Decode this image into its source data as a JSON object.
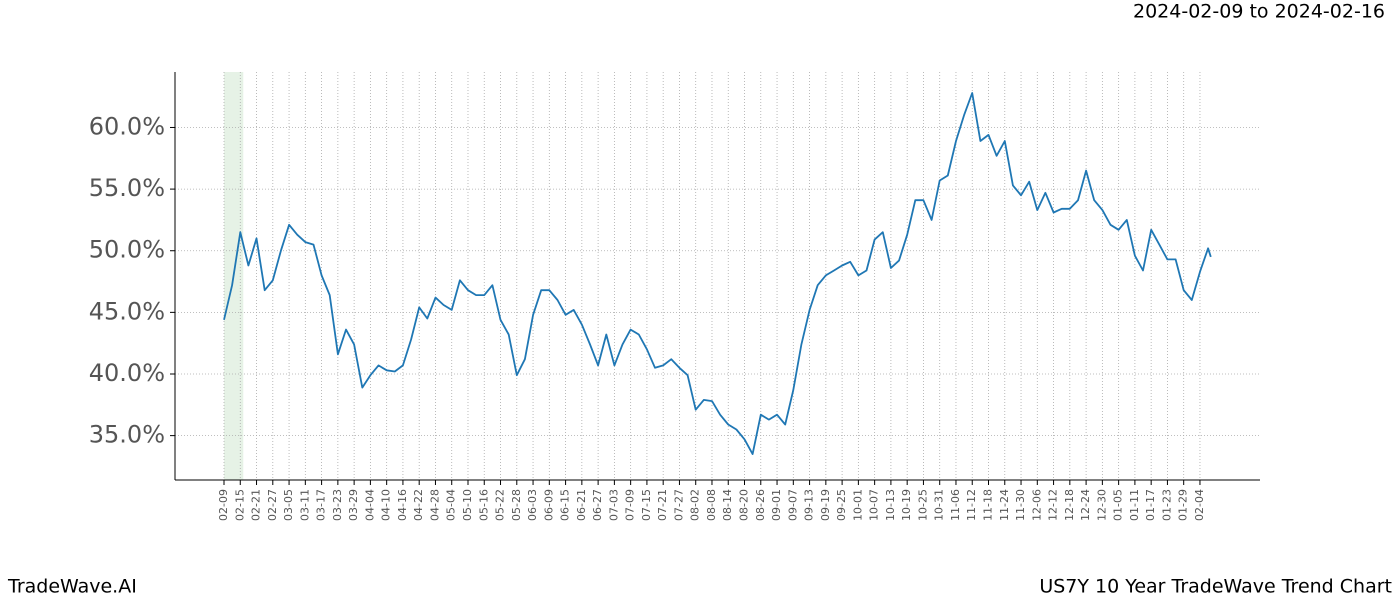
{
  "header": {
    "date_range": "2024-02-09 to 2024-02-16"
  },
  "footer": {
    "brand": "TradeWave.AI",
    "chart_name": "US7Y 10 Year TradeWave Trend Chart"
  },
  "chart_data": {
    "type": "line",
    "grid": true,
    "x": [
      "02-09",
      "02-12",
      "02-15",
      "02-18",
      "02-21",
      "02-24",
      "02-27",
      "03-02",
      "03-05",
      "03-08",
      "03-11",
      "03-14",
      "03-17",
      "03-20",
      "03-23",
      "03-26",
      "03-29",
      "04-01",
      "04-04",
      "04-07",
      "04-10",
      "04-13",
      "04-16",
      "04-19",
      "04-22",
      "04-25",
      "04-28",
      "05-01",
      "05-04",
      "05-07",
      "05-10",
      "05-13",
      "05-16",
      "05-19",
      "05-22",
      "05-25",
      "05-28",
      "05-31",
      "06-03",
      "06-06",
      "06-09",
      "06-12",
      "06-15",
      "06-18",
      "06-21",
      "06-24",
      "06-27",
      "06-30",
      "07-03",
      "07-06",
      "07-09",
      "07-12",
      "07-15",
      "07-18",
      "07-21",
      "07-24",
      "07-27",
      "07-30",
      "08-02",
      "08-05",
      "08-08",
      "08-11",
      "08-14",
      "08-17",
      "08-20",
      "08-23",
      "08-26",
      "08-29",
      "09-01",
      "09-04",
      "09-07",
      "09-10",
      "09-13",
      "09-16",
      "09-19",
      "09-22",
      "09-25",
      "09-28",
      "10-01",
      "10-04",
      "10-07",
      "10-10",
      "10-13",
      "10-16",
      "10-19",
      "10-22",
      "10-25",
      "10-28",
      "10-31",
      "11-03",
      "11-06",
      "11-09",
      "11-12",
      "11-15",
      "11-18",
      "11-21",
      "11-24",
      "11-27",
      "11-30",
      "12-03",
      "12-06",
      "12-09",
      "12-12",
      "12-15",
      "12-18",
      "12-21",
      "12-24",
      "12-27",
      "12-30",
      "01-02",
      "01-05",
      "01-08",
      "01-11",
      "01-14",
      "01-17",
      "01-20",
      "01-23",
      "01-26",
      "01-29",
      "02-01",
      "02-04",
      "02-07",
      "02-08"
    ],
    "series": [
      {
        "color": "#1f77b4",
        "values": [
          44.4,
          47.2,
          51.5,
          48.8,
          51.0,
          46.8,
          47.6,
          50.0,
          52.1,
          51.3,
          50.7,
          50.5,
          48.0,
          46.4,
          41.6,
          43.6,
          42.4,
          38.9,
          39.9,
          40.7,
          40.3,
          40.2,
          40.7,
          42.8,
          45.4,
          44.5,
          46.2,
          45.6,
          45.2,
          47.6,
          46.8,
          46.4,
          46.4,
          47.2,
          44.4,
          43.2,
          39.9,
          41.2,
          44.8,
          46.8,
          46.8,
          46.0,
          44.8,
          45.2,
          44.0,
          42.4,
          40.7,
          43.2,
          40.7,
          42.4,
          43.6,
          43.2,
          42.0,
          40.5,
          40.7,
          41.2,
          40.5,
          39.9,
          37.1,
          37.9,
          37.8,
          36.7,
          35.9,
          35.5,
          34.7,
          33.5,
          36.7,
          36.3,
          36.7,
          35.9,
          38.7,
          42.4,
          45.2,
          47.2,
          48.0,
          48.4,
          48.8,
          49.1,
          48.0,
          48.4,
          50.9,
          51.5,
          48.6,
          49.2,
          51.3,
          54.1,
          54.1,
          52.5,
          55.7,
          56.1,
          58.9,
          61.0,
          62.8,
          58.9,
          59.4,
          57.7,
          58.9,
          55.3,
          54.5,
          55.6,
          53.3,
          54.7,
          53.1,
          53.4,
          53.4,
          54.1,
          56.5,
          54.1,
          53.3,
          52.1,
          51.7,
          52.5,
          49.6,
          48.4,
          51.7,
          50.5,
          49.3,
          49.3,
          46.8,
          46.0,
          48.3,
          50.2,
          49.5
        ]
      }
    ],
    "xticks": [
      "02-09",
      "02-15",
      "02-21",
      "02-27",
      "03-05",
      "03-11",
      "03-17",
      "03-23",
      "03-29",
      "04-04",
      "04-10",
      "04-16",
      "04-22",
      "04-28",
      "05-04",
      "05-10",
      "05-16",
      "05-22",
      "05-28",
      "06-03",
      "06-09",
      "06-15",
      "06-21",
      "06-27",
      "07-03",
      "07-09",
      "07-15",
      "07-21",
      "07-27",
      "08-02",
      "08-08",
      "08-14",
      "08-20",
      "08-26",
      "09-01",
      "09-07",
      "09-13",
      "09-19",
      "09-25",
      "10-01",
      "10-07",
      "10-13",
      "10-19",
      "10-25",
      "10-31",
      "11-06",
      "11-12",
      "11-18",
      "11-24",
      "11-30",
      "12-06",
      "12-12",
      "12-18",
      "12-24",
      "12-30",
      "01-05",
      "01-11",
      "01-17",
      "01-23",
      "01-29",
      "02-04"
    ],
    "ylim": [
      31.4,
      64.5
    ],
    "yticks": [
      {
        "value": 35,
        "label": "35.0%"
      },
      {
        "value": 40,
        "label": "40.0%"
      },
      {
        "value": 45,
        "label": "45.0%"
      },
      {
        "value": 50,
        "label": "50.0%"
      },
      {
        "value": 55,
        "label": "55.0%"
      },
      {
        "value": 60,
        "label": "60.0%"
      }
    ]
  }
}
